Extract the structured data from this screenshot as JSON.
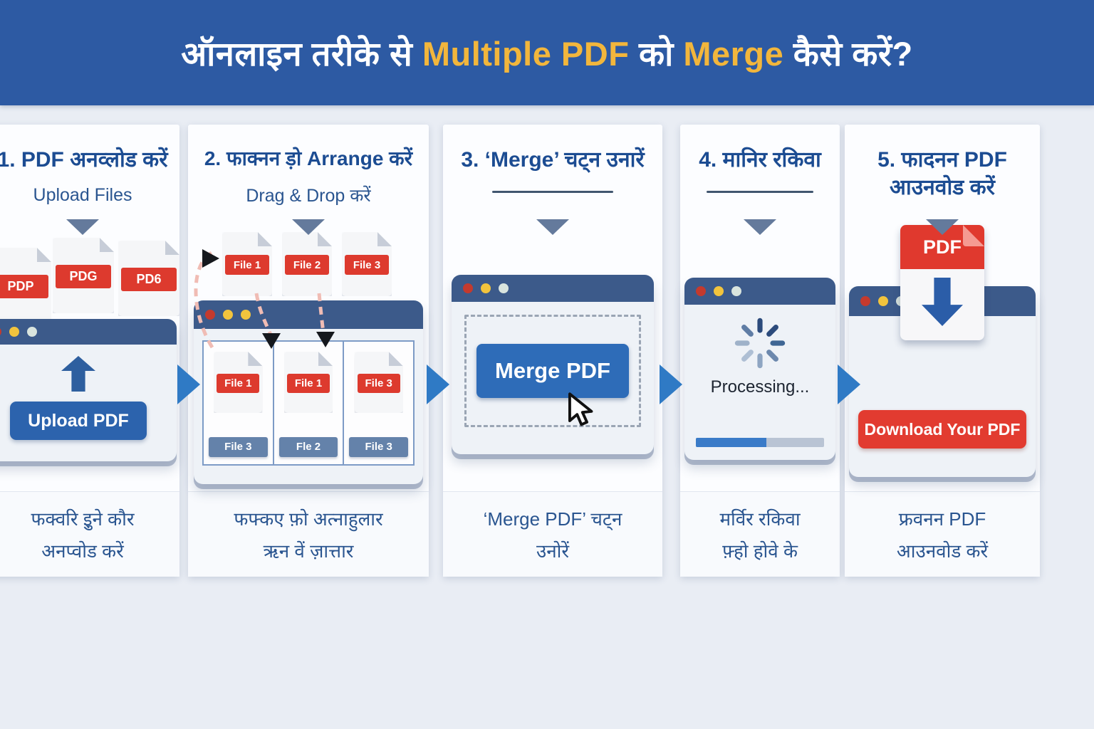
{
  "header": {
    "part1": "ऑनलाइन तरीके से ",
    "part2": "Multiple PDF",
    "part3": " को ",
    "part4": "Merge",
    "part5": " कैसे करें?"
  },
  "steps": [
    {
      "title": "1. PDF अनव्लोड करें",
      "subtitle": "Upload Files",
      "files": [
        "PDP",
        "PDG",
        "PD6"
      ],
      "button": "Upload PDF",
      "caption1": "फक्वरि इुने कौर",
      "caption2": "अनप्वोड करें"
    },
    {
      "title": "2. फाक्नन ड़ो Arrange करें",
      "subtitle": "Drag & Drop करें",
      "top_files": [
        "File 1",
        "File 2",
        "File 3"
      ],
      "slot_files": [
        {
          "label": "File 1",
          "tray": "File 3"
        },
        {
          "label": "File 1",
          "tray": "Fle 2"
        },
        {
          "label": "File 3",
          "tray": "File 3"
        }
      ],
      "caption1": "फफ्कए फ़ो अत्नाहुलार",
      "caption2": "ऋन वें ज़ात्तार"
    },
    {
      "title": "3. ‘Merge’ चट्न उनारें",
      "button": "Merge PDF",
      "caption1": "‘Merge PDF’ चट्न",
      "caption2": "उनोरें"
    },
    {
      "title": "4. मानिर रकिवा",
      "status": "Processing...",
      "progress_percent": 55,
      "caption1": "मर्विर रकिवा",
      "caption2": "फ़्हो होवे के"
    },
    {
      "title_line1": "5. फादनन PDF",
      "title_line2": "आउनवोड करें",
      "file_badge": "PDF",
      "button": "Download Your PDF",
      "caption1": "फ्रवनन PDF",
      "caption2": "आउनवोड करें"
    }
  ],
  "colors": {
    "header_bg": "#2d5aa3",
    "accent_yellow": "#f2b63c",
    "title_blue": "#1c4c92",
    "window_titlebar": "#3c5a8a",
    "button_blue": "#2c63ad",
    "pdf_red": "#dd3a2e",
    "flow_arrow_blue": "#2f7ac5",
    "progress_fill": "#3a7bc8",
    "background": "#e9edf4"
  }
}
